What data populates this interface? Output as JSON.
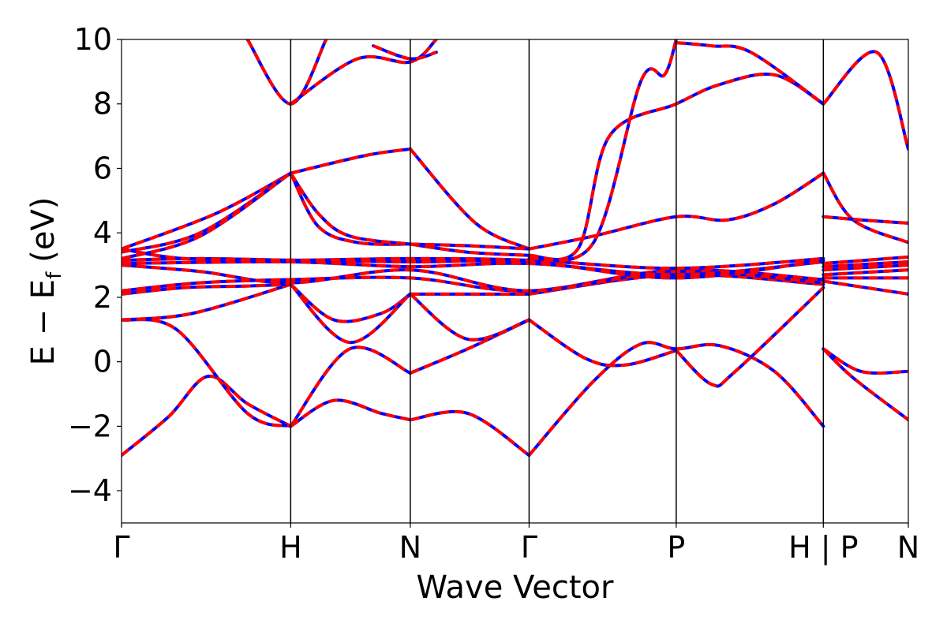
{
  "chart_data": {
    "type": "line",
    "title": "",
    "xlabel": "Wave Vector",
    "ylabel": {
      "main": "E − E",
      "subscript": "f",
      "unit": "(eV)"
    },
    "ylim": [
      -5,
      10
    ],
    "yticks": [
      "−4",
      "−2",
      "0",
      "2",
      "4",
      "6",
      "8",
      "10"
    ],
    "ytick_values": [
      -4,
      -2,
      0,
      2,
      4,
      6,
      8,
      10
    ],
    "xlim": [
      0,
      1
    ],
    "high_symmetry_points": [
      {
        "label": "Γ",
        "x": 0.0
      },
      {
        "label": "H",
        "x": 0.215
      },
      {
        "label": "N",
        "x": 0.367
      },
      {
        "label": "Γ",
        "x": 0.518
      },
      {
        "label": "P",
        "x": 0.705
      },
      {
        "label": "H | P",
        "x": 0.892
      },
      {
        "label": "N",
        "x": 1.0
      }
    ],
    "grid": false,
    "legend": "none",
    "style": {
      "series_a": {
        "color": "#0000ff",
        "linestyle": "solid"
      },
      "series_b": {
        "color": "#ff0000",
        "linestyle": "dashed"
      }
    },
    "series": [
      {
        "x": [
          0.0,
          0.06,
          0.11,
          0.16,
          0.215
        ],
        "y": [
          -2.9,
          -1.7,
          -0.45,
          -1.3,
          -2.0
        ]
      },
      {
        "x": [
          0.215,
          0.27,
          0.33,
          0.367
        ],
        "y": [
          -2.0,
          -1.2,
          -1.6,
          -1.8
        ]
      },
      {
        "x": [
          0.367,
          0.44,
          0.518
        ],
        "y": [
          -1.8,
          -1.6,
          -2.9
        ]
      },
      {
        "x": [
          0.518,
          0.6,
          0.66,
          0.705,
          0.76,
          0.83,
          0.892
        ],
        "y": [
          -2.9,
          -0.6,
          0.55,
          0.4,
          0.5,
          -0.3,
          -2.0
        ]
      },
      {
        "x": [
          0.892,
          0.93,
          1.0
        ],
        "y": [
          0.4,
          -0.5,
          -1.8
        ]
      },
      {
        "x": [
          0.0,
          0.07,
          0.16,
          0.215
        ],
        "y": [
          1.3,
          1.0,
          -1.6,
          -2.0
        ]
      },
      {
        "x": [
          0.215,
          0.29,
          0.367
        ],
        "y": [
          -2.0,
          0.4,
          -0.35
        ]
      },
      {
        "x": [
          0.367,
          0.44,
          0.518
        ],
        "y": [
          -0.35,
          0.4,
          1.3
        ]
      },
      {
        "x": [
          0.518,
          0.59,
          0.64,
          0.705
        ],
        "y": [
          1.3,
          0.1,
          -0.1,
          0.35
        ]
      },
      {
        "x": [
          0.705,
          0.75,
          0.78,
          0.892
        ],
        "y": [
          0.35,
          -0.7,
          -0.3,
          2.3
        ]
      },
      {
        "x": [
          0.892,
          0.94,
          1.0
        ],
        "y": [
          0.4,
          -0.3,
          -0.3
        ]
      },
      {
        "x": [
          0.0,
          0.09,
          0.215
        ],
        "y": [
          1.3,
          1.5,
          2.4
        ]
      },
      {
        "x": [
          0.215,
          0.27,
          0.33,
          0.367
        ],
        "y": [
          2.4,
          1.3,
          1.5,
          2.1
        ]
      },
      {
        "x": [
          0.367,
          0.44,
          0.518
        ],
        "y": [
          2.1,
          0.7,
          1.3
        ]
      },
      {
        "x": [
          0.0,
          0.08,
          0.16,
          0.215
        ],
        "y": [
          2.1,
          2.3,
          2.35,
          2.4
        ]
      },
      {
        "x": [
          0.215,
          0.29,
          0.367
        ],
        "y": [
          2.4,
          0.6,
          2.1
        ]
      },
      {
        "x": [
          0.367,
          0.518
        ],
        "y": [
          2.1,
          2.1
        ]
      },
      {
        "x": [
          0.518,
          0.705,
          0.892
        ],
        "y": [
          2.1,
          2.7,
          2.4
        ]
      },
      {
        "x": [
          0.892,
          1.0
        ],
        "y": [
          2.5,
          2.1
        ]
      },
      {
        "x": [
          0.0,
          0.1,
          0.215,
          0.367,
          0.518,
          0.705,
          0.892
        ],
        "y": [
          2.2,
          2.45,
          2.55,
          2.6,
          2.2,
          2.85,
          2.55
        ]
      },
      {
        "x": [
          0.892,
          1.0
        ],
        "y": [
          2.6,
          2.6
        ]
      },
      {
        "x": [
          0.0,
          0.1,
          0.215,
          0.367,
          0.518,
          0.705,
          0.892
        ],
        "y": [
          3.0,
          2.8,
          2.45,
          2.85,
          2.2,
          2.8,
          2.45
        ]
      },
      {
        "x": [
          0.892,
          1.0
        ],
        "y": [
          2.7,
          2.85
        ]
      },
      {
        "x": [
          0.0,
          0.215,
          0.367,
          0.518,
          0.705,
          0.892
        ],
        "y": [
          3.05,
          3.1,
          2.95,
          3.05,
          2.7,
          3.1
        ]
      },
      {
        "x": [
          0.892,
          1.0
        ],
        "y": [
          2.85,
          3.0
        ]
      },
      {
        "x": [
          0.0,
          0.1,
          0.215,
          0.367,
          0.518,
          0.705,
          0.892
        ],
        "y": [
          3.15,
          3.2,
          3.15,
          3.1,
          3.1,
          2.6,
          3.15
        ]
      },
      {
        "x": [
          0.892,
          1.0
        ],
        "y": [
          2.95,
          3.1
        ]
      },
      {
        "x": [
          0.0,
          0.08,
          0.215,
          0.367,
          0.518,
          0.705,
          0.892
        ],
        "y": [
          3.5,
          3.2,
          3.15,
          3.2,
          3.15,
          2.9,
          3.2
        ]
      },
      {
        "x": [
          0.892,
          1.0
        ],
        "y": [
          3.05,
          3.25
        ]
      },
      {
        "x": [
          0.0,
          0.12,
          0.215
        ],
        "y": [
          3.5,
          4.6,
          5.85
        ]
      },
      {
        "x": [
          0.215,
          0.31,
          0.367
        ],
        "y": [
          5.85,
          6.4,
          6.6
        ]
      },
      {
        "x": [
          0.367,
          0.45,
          0.518
        ],
        "y": [
          6.6,
          4.3,
          3.5
        ]
      },
      {
        "x": [
          0.0,
          0.1,
          0.215
        ],
        "y": [
          3.4,
          4.0,
          5.85
        ]
      },
      {
        "x": [
          0.215,
          0.25,
          0.3,
          0.367
        ],
        "y": [
          5.85,
          4.2,
          3.7,
          3.65
        ]
      },
      {
        "x": [
          0.367,
          0.44,
          0.518
        ],
        "y": [
          3.65,
          3.4,
          3.3
        ]
      },
      {
        "x": [
          0.0,
          0.1,
          0.215
        ],
        "y": [
          3.2,
          3.9,
          5.85
        ]
      },
      {
        "x": [
          0.215,
          0.25,
          0.29,
          0.367
        ],
        "y": [
          5.85,
          4.6,
          3.9,
          3.65
        ]
      },
      {
        "x": [
          0.367,
          0.44,
          0.518
        ],
        "y": [
          3.65,
          3.6,
          3.5
        ]
      },
      {
        "x": [
          0.518,
          0.6,
          0.705,
          0.77,
          0.83,
          0.892
        ],
        "y": [
          3.5,
          3.9,
          4.5,
          4.4,
          4.9,
          5.85
        ]
      },
      {
        "x": [
          0.518,
          0.58,
          0.62,
          0.705,
          0.76,
          0.83,
          0.892
        ],
        "y": [
          3.3,
          3.5,
          7.0,
          8.0,
          8.6,
          8.9,
          8.0
        ]
      },
      {
        "x": [
          0.518,
          0.6,
          0.66,
          0.69,
          0.705
        ],
        "y": [
          3.2,
          3.7,
          8.7,
          8.9,
          10.0
        ]
      },
      {
        "x": [
          0.705,
          0.75,
          0.8,
          0.892
        ],
        "y": [
          9.9,
          9.8,
          9.6,
          8.0
        ]
      },
      {
        "x": [
          0.892,
          0.96,
          1.0
        ],
        "y": [
          8.0,
          9.6,
          6.6
        ]
      },
      {
        "x": [
          0.892,
          0.93,
          1.0
        ],
        "y": [
          5.85,
          4.4,
          3.7
        ]
      },
      {
        "x": [
          0.892,
          0.94,
          1.0
        ],
        "y": [
          4.5,
          4.4,
          4.3
        ]
      },
      {
        "x": [
          0.16,
          0.215,
          0.26
        ],
        "y": [
          10.0,
          8.0,
          10.0
        ]
      },
      {
        "x": [
          0.215,
          0.3,
          0.367,
          0.4
        ],
        "y": [
          8.0,
          9.4,
          9.3,
          10.0
        ]
      },
      {
        "x": [
          0.32,
          0.367,
          0.4
        ],
        "y": [
          9.8,
          9.4,
          9.6
        ]
      }
    ]
  }
}
